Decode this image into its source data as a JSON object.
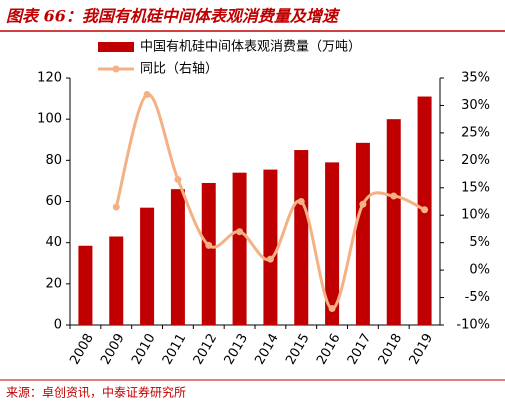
{
  "chart_data": {
    "type": "bar",
    "title": "图表 66：我国有机硅中间体表观消费量及增速",
    "source": "来源：卓创资讯，中泰证券研究所",
    "categories": [
      "2008",
      "2009",
      "2010",
      "2011",
      "2012",
      "2013",
      "2014",
      "2015",
      "2016",
      "2017",
      "2018",
      "2019"
    ],
    "series": [
      {
        "name": "中国有机硅中间体表观消费量（万吨）",
        "type": "bar",
        "color": "#c00000",
        "values": [
          38.5,
          43,
          57,
          66,
          69,
          74,
          75.5,
          85,
          79,
          88.5,
          100,
          111
        ]
      },
      {
        "name": "同比（右轴）",
        "type": "line",
        "axis": "y2",
        "color": "#f4b183",
        "values": [
          null,
          11.5,
          32,
          16.5,
          4.5,
          7,
          2,
          12.5,
          -7,
          12,
          13.5,
          11
        ]
      }
    ],
    "ylim": [
      0,
      120
    ],
    "yticks": [
      0,
      20,
      40,
      60,
      80,
      100,
      120
    ],
    "y2lim": [
      -10,
      35
    ],
    "y2ticks": [
      {
        "value": -10,
        "label": "-10%"
      },
      {
        "value": -5,
        "label": "-5%"
      },
      {
        "value": 0,
        "label": "0%"
      },
      {
        "value": 5,
        "label": "5%"
      },
      {
        "value": 10,
        "label": "10%"
      },
      {
        "value": 15,
        "label": "15%"
      },
      {
        "value": 20,
        "label": "20%"
      },
      {
        "value": 25,
        "label": "25%"
      },
      {
        "value": 30,
        "label": "30%"
      },
      {
        "value": 35,
        "label": "35%"
      }
    ]
  }
}
